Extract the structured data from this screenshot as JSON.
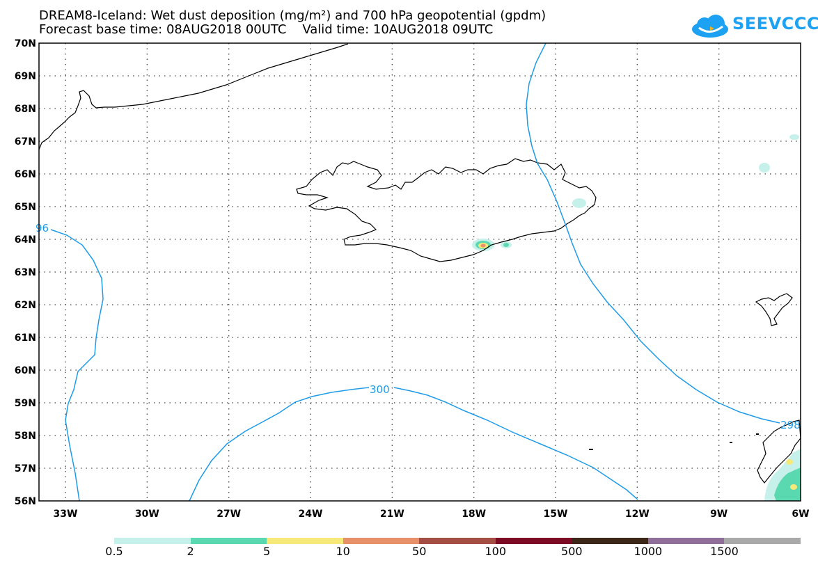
{
  "title_line1": "DREAM8-Iceland: Wet dust deposition (mg/m²) and 700 hPa geopotential (gpdm)",
  "title_line2": "Forecast base time: 08AUG2018 00UTC    Valid time: 10AUG2018 09UTC",
  "logo_text": "SEEVCCC",
  "logo_color": "#1da1f2",
  "lat_labels": [
    "70N",
    "69N",
    "68N",
    "67N",
    "66N",
    "65N",
    "64N",
    "63N",
    "62N",
    "61N",
    "60N",
    "59N",
    "58N",
    "57N",
    "56N"
  ],
  "lon_labels": [
    "33W",
    "30W",
    "27W",
    "24W",
    "21W",
    "18W",
    "15W",
    "12W",
    "9W",
    "6W"
  ],
  "contour_color": "#1e9be8",
  "contour_labels": [
    "96",
    "300",
    "298"
  ],
  "legend": {
    "labels": [
      "0.5",
      "2",
      "5",
      "10",
      "50",
      "100",
      "500",
      "1000",
      "1500"
    ],
    "colors": [
      "#c5f1ea",
      "#5ad8b0",
      "#f7e87a",
      "#e8906a",
      "#a34d43",
      "#7d0a24",
      "#3b2618",
      "#8f6e9a",
      "#a9a9a9"
    ]
  }
}
